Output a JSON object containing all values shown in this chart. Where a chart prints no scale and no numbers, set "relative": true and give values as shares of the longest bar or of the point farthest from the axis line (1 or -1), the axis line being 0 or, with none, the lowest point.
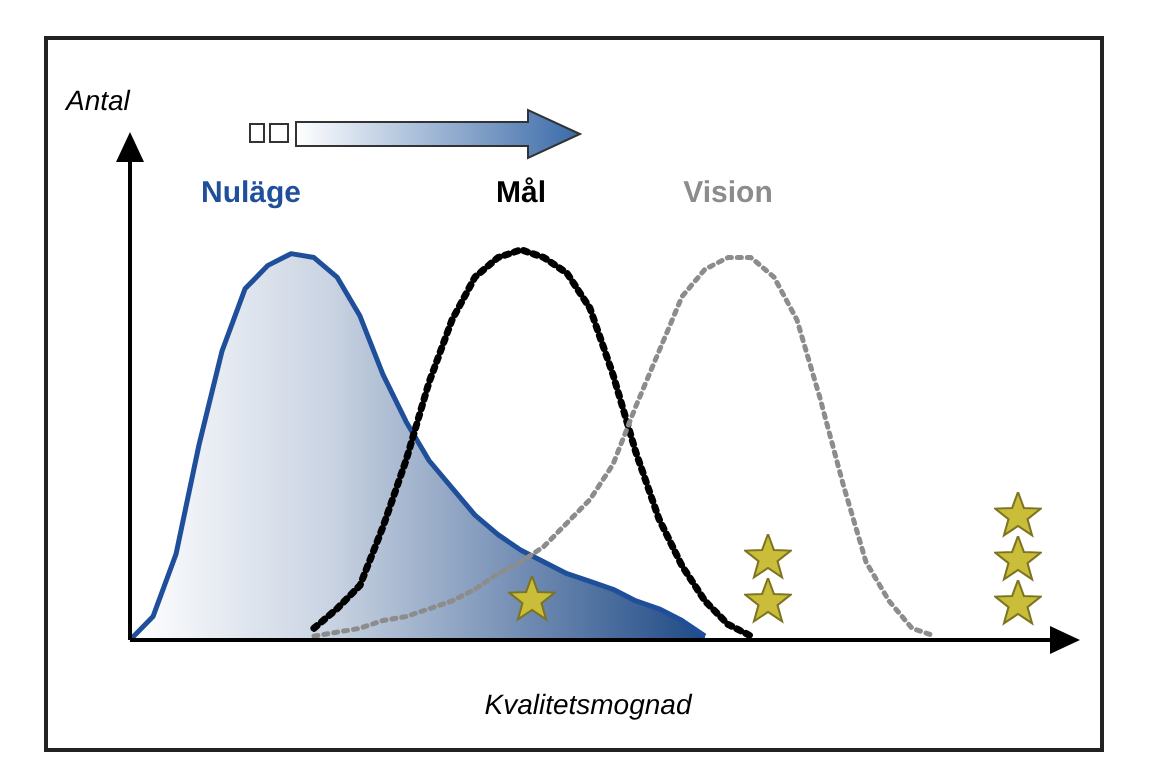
{
  "chart_data": {
    "type": "line",
    "xlabel": "Kvalitetsmognad",
    "ylabel": "Antal",
    "relative": true,
    "marker": "none",
    "categories": [
      null,
      null,
      null,
      null,
      null,
      null,
      null,
      null,
      null,
      null,
      null,
      null,
      null,
      null,
      null,
      null,
      null,
      null,
      null,
      null,
      null,
      null,
      null,
      null,
      null,
      null,
      null,
      null,
      null,
      null,
      null,
      null,
      null,
      null,
      null,
      null
    ],
    "series": [
      {
        "name": "Nuläge",
        "type": "area",
        "color": "#1f4f9a",
        "values": [
          0,
          0.06,
          0.22,
          0.5,
          0.74,
          0.9,
          0.96,
          0.99,
          0.98,
          0.93,
          0.83,
          0.68,
          0.56,
          0.46,
          0.39,
          0.32,
          0.27,
          0.23,
          0.2,
          0.17,
          0.15,
          0.13,
          0.1,
          0.08,
          0.05,
          0.01,
          null,
          null,
          null,
          null,
          null,
          null,
          null,
          null,
          null,
          null
        ]
      },
      {
        "name": "Mål",
        "line_style": "dotted",
        "color": "#000000",
        "values": [
          null,
          null,
          null,
          null,
          null,
          null,
          null,
          null,
          0.03,
          0.08,
          0.14,
          0.29,
          0.46,
          0.66,
          0.82,
          0.93,
          0.98,
          1.0,
          0.98,
          0.94,
          0.85,
          0.68,
          0.48,
          0.31,
          0.19,
          0.1,
          0.04,
          0.01,
          null,
          null,
          null,
          null,
          null,
          null,
          null,
          null
        ]
      },
      {
        "name": "Vision",
        "line_style": "dotted",
        "color": "#8c8c8c",
        "values": [
          null,
          null,
          null,
          null,
          null,
          null,
          null,
          null,
          0.01,
          0.02,
          0.03,
          0.05,
          0.06,
          0.08,
          0.1,
          0.13,
          0.17,
          0.2,
          0.24,
          0.3,
          0.36,
          0.45,
          0.6,
          0.74,
          0.88,
          0.95,
          0.98,
          0.98,
          0.93,
          0.82,
          0.62,
          0.4,
          0.2,
          0.1,
          0.03,
          0.01
        ]
      }
    ]
  }
}
